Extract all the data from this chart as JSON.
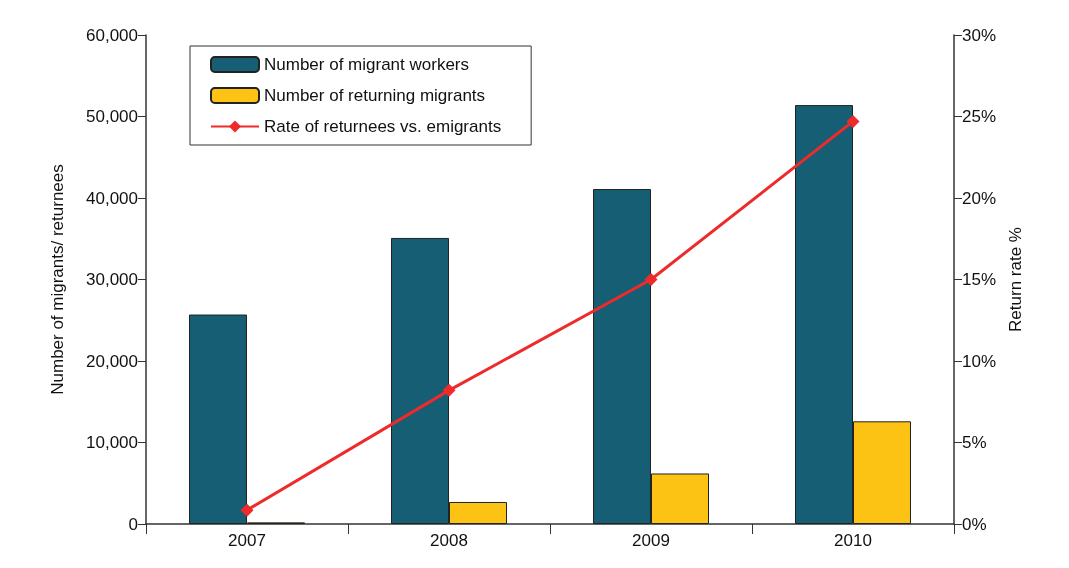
{
  "chart_data": {
    "type": "bar",
    "categories": [
      "2007",
      "2008",
      "2009",
      "2010"
    ],
    "ylabel": "Number of migrants/ returnees",
    "y2label": "Return rate %",
    "series": [
      {
        "name": "Number of migrant workers",
        "color": "#165e74",
        "values": [
          25700,
          35100,
          41100,
          51400
        ]
      },
      {
        "name": "Number of returning migrants",
        "color": "#fcc314",
        "values": [
          200,
          2700,
          6200,
          12600
        ]
      },
      {
        "name": "Rate of returnees vs. emigrants",
        "color": "#ee2a2a",
        "type": "line",
        "axis": "y2",
        "marker": "diamond",
        "values": [
          0.85,
          8.2,
          15.0,
          24.7
        ]
      }
    ],
    "ylim": [
      0,
      60000
    ],
    "yticks": [
      {
        "value": 0,
        "label": "0"
      },
      {
        "value": 10000,
        "label": "10,000"
      },
      {
        "value": 20000,
        "label": "20,000"
      },
      {
        "value": 30000,
        "label": "30,000"
      },
      {
        "value": 40000,
        "label": "40,000"
      },
      {
        "value": 50000,
        "label": "50,000"
      },
      {
        "value": 60000,
        "label": "60,000"
      }
    ],
    "y2lim": [
      0,
      30
    ],
    "y2ticks": [
      {
        "value": 0,
        "label": "0%"
      },
      {
        "value": 5,
        "label": "5%"
      },
      {
        "value": 10,
        "label": "10%"
      },
      {
        "value": 15,
        "label": "15%"
      },
      {
        "value": 20,
        "label": "20%"
      },
      {
        "value": 25,
        "label": "25%"
      },
      {
        "value": 30,
        "label": "30%"
      }
    ],
    "grid": false,
    "legend": "top left"
  }
}
